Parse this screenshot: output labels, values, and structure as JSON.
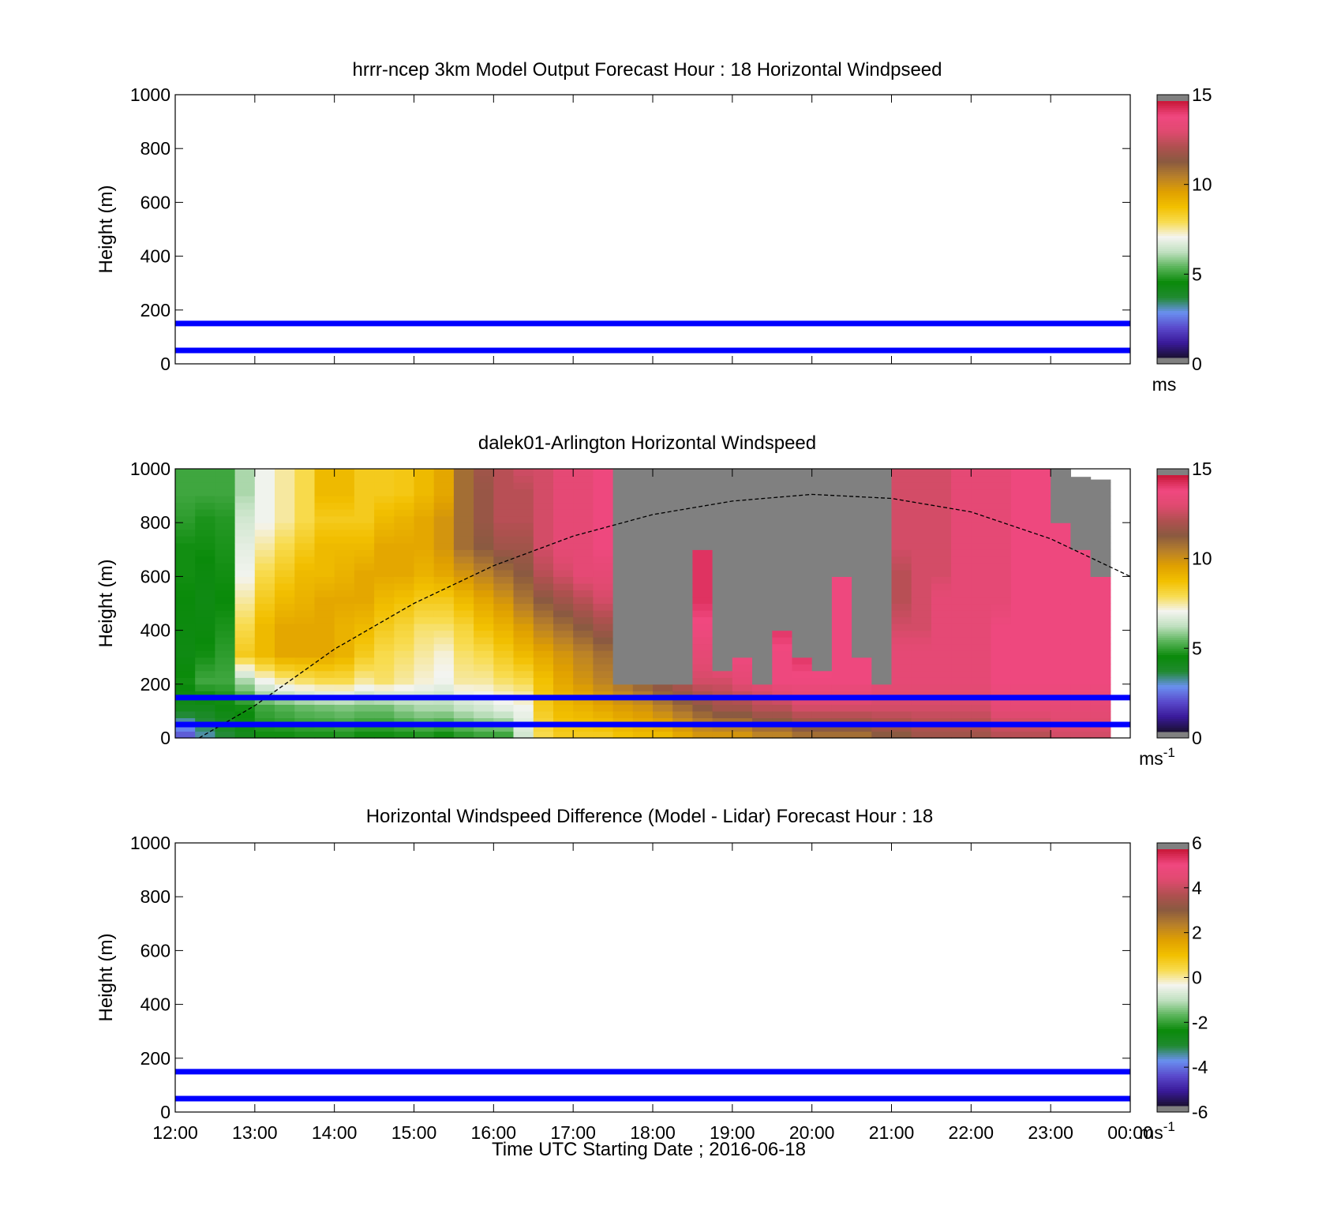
{
  "chart_data": [
    {
      "type": "heatmap",
      "title": "hrrr-ncep 3km Model Output   Forecast Hour : 18 Horizontal Windpseed",
      "ylabel": "Height (m)",
      "xlabel": "",
      "xlim": [
        "12:00",
        "00:00"
      ],
      "ylim": [
        0,
        1000
      ],
      "yticks": [
        "0",
        "200",
        "400",
        "600",
        "800",
        "1000"
      ],
      "xticks": [
        "12:00",
        "13:00",
        "14:00",
        "15:00",
        "16:00",
        "17:00",
        "18:00",
        "19:00",
        "20:00",
        "21:00",
        "22:00",
        "23:00",
        "00:00"
      ],
      "show_xtick_labels": false,
      "reference_lines": [
        {
          "height": 150,
          "color": "#0000ff"
        },
        {
          "height": 50,
          "color": "#0000ff"
        }
      ],
      "colorbar": {
        "min": 0,
        "max": 15,
        "ticks": [
          "0",
          "5",
          "10",
          "15"
        ],
        "unit": "ms",
        "unit_sup": ""
      },
      "cells": "none"
    },
    {
      "type": "heatmap",
      "title": "dalek01-Arlington  Horizontal Windspeed",
      "ylabel": "Height (m)",
      "xlabel": "",
      "xlim": [
        "12:00",
        "00:00"
      ],
      "ylim": [
        0,
        1000
      ],
      "yticks": [
        "0",
        "200",
        "400",
        "600",
        "800",
        "1000"
      ],
      "xticks": [
        "12:00",
        "13:00",
        "14:00",
        "15:00",
        "16:00",
        "17:00",
        "18:00",
        "19:00",
        "20:00",
        "21:00",
        "22:00",
        "23:00",
        "00:00"
      ],
      "show_xtick_labels": false,
      "reference_lines": [
        {
          "height": 150,
          "color": "#0000ff"
        },
        {
          "height": 50,
          "color": "#0000ff"
        }
      ],
      "colorbar": {
        "min": 0,
        "max": 15,
        "ticks": [
          "0",
          "5",
          "10",
          "15"
        ],
        "unit": "ms",
        "unit_sup": "-1"
      },
      "boundary_layer_curve": {
        "style": "dashed",
        "color": "#000000",
        "times_h": [
          12.3,
          13.0,
          14.0,
          15.0,
          16.0,
          17.0,
          18.0,
          19.0,
          20.0,
          21.0,
          22.0,
          23.0,
          24.0
        ],
        "heights_m": [
          0,
          120,
          330,
          500,
          640,
          750,
          830,
          880,
          905,
          890,
          840,
          740,
          600
        ]
      },
      "profiles": {
        "start_hour": 12.0,
        "step_hours": 0.25,
        "column_tops_m": [
          1000,
          1000,
          1000,
          1000,
          1000,
          1000,
          1000,
          1000,
          1000,
          1000,
          1000,
          1000,
          1000,
          1000,
          1000,
          1000,
          1000,
          1000,
          1000,
          1000,
          1000,
          1000,
          1000,
          1000,
          1000,
          1000,
          1000,
          1000,
          1000,
          1000,
          1000,
          1000,
          1000,
          1000,
          1000,
          1000,
          1000,
          1000,
          1000,
          1000,
          1000,
          1000,
          1000,
          1000,
          1000,
          970,
          960
        ],
        "levels_m": [
          0,
          100,
          200,
          300,
          400,
          500,
          600,
          700,
          800,
          900,
          1000
        ],
        "speed_ms": [
          [
            2,
            4,
            4.5,
            4.2,
            4.3,
            4.4,
            4.5,
            4.5,
            4.8,
            5,
            5
          ],
          [
            3,
            4,
            5,
            4.5,
            4.3,
            4.2,
            4.3,
            4.5,
            4.6,
            5,
            5
          ],
          [
            3.5,
            4.3,
            5,
            4.8,
            4.6,
            4.4,
            4.5,
            4.6,
            4.7,
            5,
            5
          ],
          [
            4,
            4.5,
            6,
            8.5,
            8,
            7.5,
            7,
            6.8,
            6.5,
            6,
            6
          ],
          [
            4.5,
            5,
            7,
            9,
            9,
            8.5,
            8,
            7.5,
            7,
            7,
            7
          ],
          [
            4.5,
            5.2,
            7.5,
            9.5,
            9.5,
            9,
            8.5,
            8,
            7.5,
            7.5,
            7.5
          ],
          [
            4.6,
            5.4,
            7.8,
            9.5,
            9.5,
            9.2,
            9,
            8.5,
            8,
            8,
            8
          ],
          [
            4.6,
            5.5,
            8,
            9.5,
            9.5,
            9.5,
            9,
            9,
            8.5,
            9,
            9
          ],
          [
            4.7,
            5.6,
            8,
            9.2,
            9.2,
            9.5,
            9.2,
            9,
            8.5,
            9,
            9
          ],
          [
            4.5,
            5.5,
            7.5,
            8.5,
            9,
            9.5,
            9.5,
            9,
            8.5,
            8.5,
            8.5
          ],
          [
            4.5,
            5.5,
            7.8,
            8,
            8.5,
            9,
            9.5,
            9.5,
            9,
            8.5,
            8.5
          ],
          [
            4.6,
            5.8,
            7.5,
            7.8,
            8.2,
            8.8,
            9.5,
            9.5,
            9.2,
            8.6,
            8.6
          ],
          [
            4.7,
            6,
            7.2,
            7.5,
            7.8,
            8.5,
            9.2,
            9.5,
            9.5,
            9,
            9
          ],
          [
            4.5,
            6,
            7,
            7.2,
            7.8,
            8.5,
            9.5,
            10,
            10,
            9.5,
            9.5
          ],
          [
            4.8,
            6.3,
            7.5,
            7.8,
            8.2,
            9,
            10,
            11,
            11,
            11,
            11
          ],
          [
            5,
            6.5,
            7.5,
            8,
            8.8,
            9.5,
            10.5,
            11.5,
            11.8,
            11.8,
            12
          ],
          [
            5,
            6.8,
            7.8,
            8.5,
            9.2,
            10,
            11,
            12,
            12.5,
            12.5,
            12.5
          ],
          [
            6.5,
            7,
            8,
            9,
            9.8,
            10.8,
            11.5,
            12,
            12.5,
            12.5,
            13
          ],
          [
            8,
            8.5,
            8.8,
            9.5,
            10.5,
            11.5,
            12.5,
            13,
            13,
            13,
            13
          ],
          [
            8.5,
            9,
            9.5,
            10,
            11,
            12,
            13,
            13.5,
            13.5,
            13.5,
            13.5
          ],
          [
            8.5,
            9.2,
            10,
            10.5,
            11.5,
            12.5,
            13.5,
            13.5,
            13.5,
            13.5,
            13.5
          ],
          [
            8.5,
            9.5,
            10.5,
            11,
            12,
            13,
            13.5,
            14,
            14,
            14,
            14
          ],
          [
            8.8,
            9.8,
            11,
            11.5,
            12.5,
            13.2,
            14,
            14,
            14,
            14,
            14
          ],
          [
            9,
            10,
            11.5,
            12,
            13,
            13.5,
            14,
            14.2,
            14.2,
            14,
            14
          ],
          [
            9,
            10.5,
            12,
            12.5,
            13,
            13.5,
            14,
            14.5,
            14.5,
            14.5,
            14.5
          ],
          [
            9.5,
            11,
            12.5,
            13,
            13.5,
            14,
            14.5,
            14.5,
            14.5,
            14.5,
            14.5
          ],
          [
            10,
            11.5,
            13,
            13.5,
            14,
            14.5,
            14.5,
            14.5,
            14.5,
            14.5,
            14.5
          ],
          [
            10,
            12,
            13,
            14,
            14.5,
            14.5,
            14.5,
            14.5,
            14.5,
            14.5,
            14.5
          ],
          [
            10,
            12,
            13.5,
            14,
            14.5,
            14.5,
            14.5,
            14.5,
            14.5,
            14.5,
            14.5
          ],
          [
            10.5,
            12.5,
            13.5,
            14,
            14.5,
            14.5,
            14.5,
            14.5,
            14.5,
            14.5,
            14.5
          ],
          [
            10.5,
            12.5,
            14,
            14,
            14.5,
            14.5,
            14.5,
            14.5,
            14.5,
            14.5,
            14.5
          ],
          [
            11,
            13,
            14,
            14.5,
            14.5,
            14.5,
            14.5,
            14.5,
            14.5,
            14.5,
            14.5
          ],
          [
            11,
            13,
            14,
            14.5,
            14.5,
            14.5,
            14.5,
            14.5,
            14.5,
            14.5,
            14.5
          ],
          [
            11,
            13,
            14,
            14,
            14,
            14,
            14,
            14,
            14,
            14,
            14
          ],
          [
            11,
            13,
            14,
            14,
            13.5,
            13.5,
            13.5,
            13.5,
            13.5,
            13.5,
            13.5
          ],
          [
            11.5,
            13,
            13.5,
            13.5,
            13,
            13,
            13,
            13,
            13,
            13,
            13
          ],
          [
            11.5,
            13,
            13.5,
            13.5,
            13,
            12.5,
            12.5,
            13,
            13,
            13,
            13
          ],
          [
            12,
            13,
            13.5,
            13.5,
            13,
            13,
            13,
            13,
            13,
            13,
            13
          ],
          [
            12,
            13,
            13.5,
            13.5,
            13.5,
            13.5,
            13,
            13,
            13,
            13,
            13
          ],
          [
            12,
            13,
            13.5,
            13.5,
            13.5,
            13.5,
            13.5,
            13.5,
            13.5,
            13.5,
            13.5
          ],
          [
            12,
            13,
            13.5,
            13.5,
            13.5,
            13.5,
            13.5,
            13.5,
            13.5,
            13.5,
            13.5
          ],
          [
            12.5,
            13.5,
            14,
            14,
            14,
            13.5,
            13.5,
            13.5,
            13.5,
            13.5,
            13.5
          ],
          [
            12.5,
            13.5,
            14,
            14,
            14,
            14,
            14,
            14,
            14,
            14,
            14
          ],
          [
            12.5,
            13.5,
            14,
            14,
            14,
            14,
            14,
            14,
            14,
            14,
            14
          ],
          [
            13,
            13.5,
            14,
            14,
            14,
            14,
            14,
            14,
            14,
            14,
            14
          ],
          [
            13,
            13.5,
            14,
            14,
            14,
            14,
            14,
            14,
            14,
            14,
            14
          ],
          [
            13,
            13.5,
            14,
            14,
            14,
            14,
            14,
            14,
            14,
            14,
            14
          ]
        ],
        "missing_above_m": [
          null,
          null,
          null,
          null,
          null,
          null,
          null,
          null,
          null,
          null,
          null,
          null,
          null,
          null,
          null,
          null,
          null,
          null,
          null,
          null,
          null,
          null,
          200,
          200,
          200,
          190,
          700,
          230,
          300,
          200,
          400,
          300,
          250,
          600,
          300,
          200,
          null,
          null,
          null,
          null,
          null,
          null,
          null,
          null,
          800,
          700,
          600
        ]
      }
    },
    {
      "type": "heatmap",
      "title": "Horizontal Windspeed Difference (Model - Lidar) Forecast Hour : 18",
      "ylabel": "Height (m)",
      "xlabel": "Time UTC  Starting Date ; 2016-06-18",
      "xlim": [
        "12:00",
        "00:00"
      ],
      "ylim": [
        0,
        1000
      ],
      "yticks": [
        "0",
        "200",
        "400",
        "600",
        "800",
        "1000"
      ],
      "xticks": [
        "12:00",
        "13:00",
        "14:00",
        "15:00",
        "16:00",
        "17:00",
        "18:00",
        "19:00",
        "20:00",
        "21:00",
        "22:00",
        "23:00",
        "00:00"
      ],
      "show_xtick_labels": true,
      "reference_lines": [
        {
          "height": 150,
          "color": "#0000ff"
        },
        {
          "height": 50,
          "color": "#0000ff"
        }
      ],
      "colorbar": {
        "min": -6,
        "max": 6,
        "ticks": [
          "-6",
          "-4",
          "-2",
          "0",
          "2",
          "4",
          "6"
        ],
        "unit": "ms",
        "unit_sup": "-1"
      },
      "cells": "none"
    }
  ],
  "colormap": [
    "#1a1030",
    "#3a1a9a",
    "#5a4acc",
    "#6a90f0",
    "#208a30",
    "#0a8a0a",
    "#5ab45a",
    "#bfe0bf",
    "#f4f4f0",
    "#f8dc50",
    "#f2c000",
    "#e0a000",
    "#b8802a",
    "#8a5a40",
    "#b05050",
    "#e04a70",
    "#f04880",
    "#c81838"
  ],
  "colorbar_endcap": "#808080",
  "missing_color": "#808080",
  "reference_line_color": "#0000ff"
}
